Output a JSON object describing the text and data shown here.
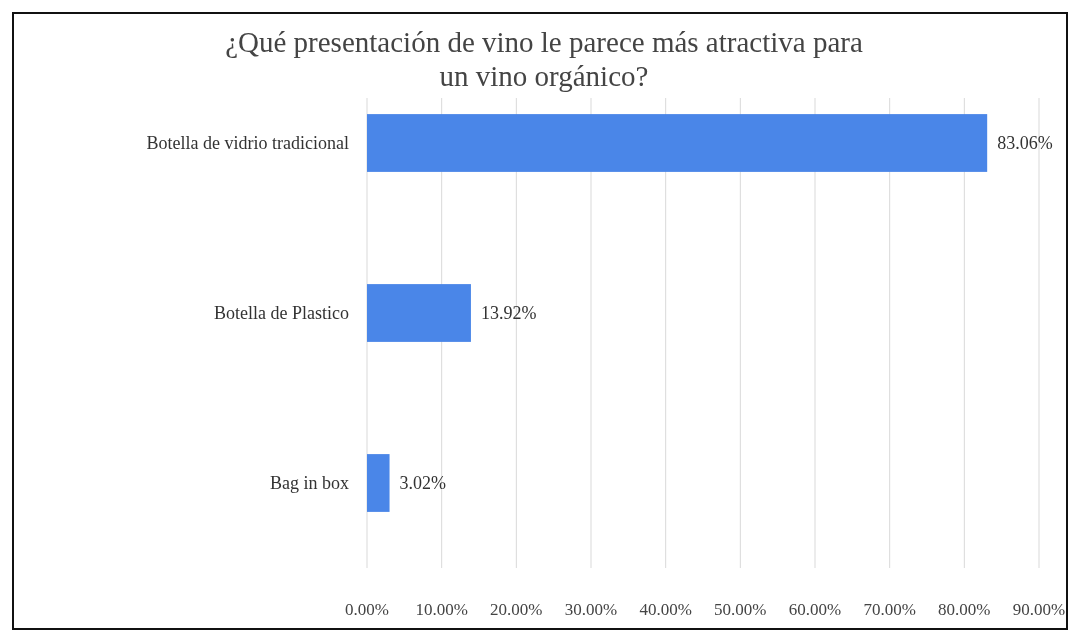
{
  "chart_data": {
    "type": "bar",
    "orientation": "horizontal",
    "title": "¿Qué presentación de vino le parece más atractiva para un vino orgánico?",
    "categories": [
      "Botella de vidrio tradicional",
      "Botella de Plastico",
      "Bag in box"
    ],
    "values": [
      83.06,
      13.92,
      3.02
    ],
    "value_labels": [
      "83.06%",
      "13.92%",
      "3.02%"
    ],
    "color": "#4a86e8",
    "xlim": [
      0,
      90
    ],
    "xticks": [
      {
        "value": 0,
        "label": "0.00%"
      },
      {
        "value": 10,
        "label": "10.00%"
      },
      {
        "value": 20,
        "label": "20.00%"
      },
      {
        "value": 30,
        "label": "30.00%"
      },
      {
        "value": 40,
        "label": "40.00%"
      },
      {
        "value": 50,
        "label": "50.00%"
      },
      {
        "value": 60,
        "label": "60.00%"
      },
      {
        "value": 70,
        "label": "70.00%"
      },
      {
        "value": 80,
        "label": "80.00%"
      },
      {
        "value": 90,
        "label": "90.00%"
      }
    ],
    "grid": "x"
  }
}
